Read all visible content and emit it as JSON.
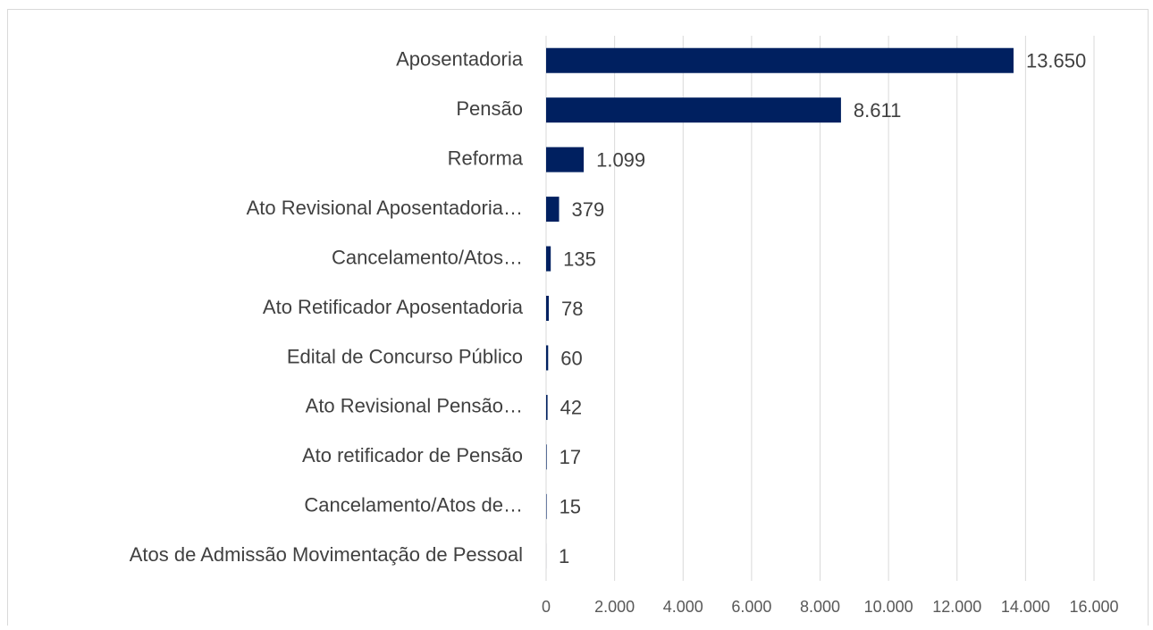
{
  "chart_data": {
    "type": "barh",
    "categories": [
      "Aposentadoria",
      "Pensão",
      "Reforma",
      "Ato Revisional Aposentadoria…",
      "Cancelamento/Atos…",
      "Ato Retificador Aposentadoria",
      "Edital de Concurso Público",
      "Ato Revisional Pensão…",
      "Ato retificador de Pensão",
      "Cancelamento/Atos de…",
      "Atos de Admissão Movimentação de Pessoal"
    ],
    "values": [
      13650,
      8611,
      1099,
      379,
      135,
      78,
      60,
      42,
      17,
      15,
      1
    ],
    "value_labels": [
      "13.650",
      "8.611",
      "1.099",
      "379",
      "135",
      "78",
      "60",
      "42",
      "17",
      "15",
      "1"
    ],
    "color": "#002060",
    "xlim": [
      0,
      16000
    ],
    "xticks": [
      0,
      {
        "value": 2000,
        "label": "2.000"
      },
      {
        "value": 4000,
        "label": "4.000"
      },
      {
        "value": 6000,
        "label": "6.000"
      },
      {
        "value": 8000,
        "label": "8.000"
      },
      {
        "value": 10000,
        "label": "10.000"
      },
      {
        "value": 12000,
        "label": "12.000"
      },
      {
        "value": 14000,
        "label": "14.000"
      },
      {
        "value": 16000,
        "label": "16.000"
      }
    ],
    "grid": true
  }
}
